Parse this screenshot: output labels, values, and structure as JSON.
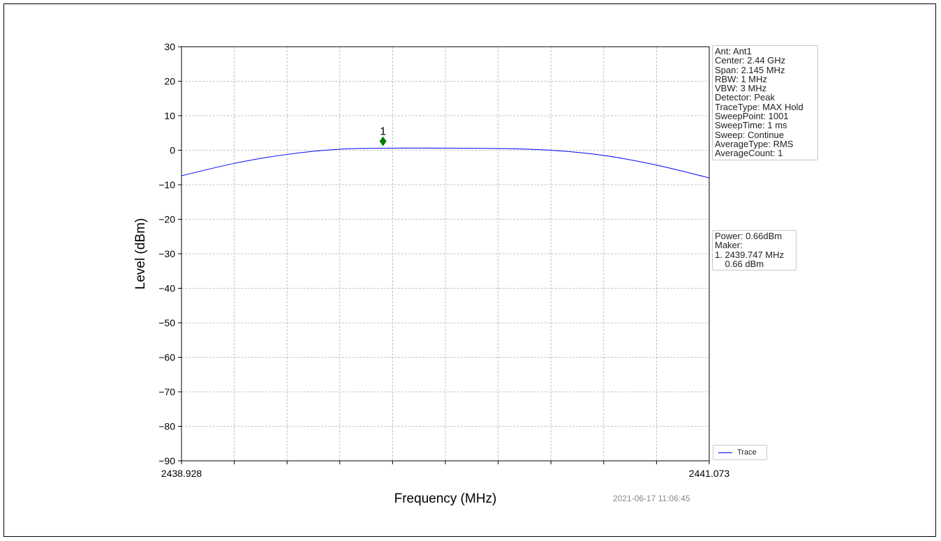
{
  "chart_data": {
    "type": "line",
    "xlabel": "Frequency (MHz)",
    "ylabel": "Level (dBm)",
    "xlim": [
      2438.928,
      2441.073
    ],
    "ylim": [
      -90,
      30
    ],
    "x_tick_labels": [
      "2438.928",
      "2441.073"
    ],
    "y_ticks": [
      30,
      20,
      10,
      0,
      -10,
      -20,
      -30,
      -40,
      -50,
      -60,
      -70,
      -80,
      -90
    ],
    "y_tick_labels": [
      "30",
      "20",
      "10",
      "0",
      "−10",
      "−20",
      "−30",
      "−40",
      "−50",
      "−60",
      "−70",
      "−80",
      "−90"
    ],
    "grid": true,
    "grid_style": "dashed",
    "x_grid_divisions": 10,
    "legend_placement": "lower-right outside",
    "series": [
      {
        "name": "Trace",
        "color": "#0000ff",
        "x": [
          2438.928,
          2439.143,
          2439.357,
          2439.572,
          2439.786,
          2440.0,
          2440.215,
          2440.429,
          2440.644,
          2440.858,
          2441.073
        ],
        "y": [
          -7.4,
          -3.8,
          -1.2,
          0.3,
          0.6,
          0.6,
          0.5,
          0.0,
          -1.5,
          -4.3,
          -8.0
        ]
      }
    ],
    "marker": {
      "label": "1",
      "x": 2439.747,
      "y": 2.6,
      "color": "#008000"
    }
  },
  "settings_box": [
    "Ant: Ant1",
    "Center: 2.44 GHz",
    "Span: 2.145 MHz",
    "RBW: 1 MHz",
    "VBW: 3 MHz",
    "Detector: Peak",
    "TraceType: MAX Hold",
    "SweepPoint: 1001",
    "SweepTime: 1 ms",
    "Sweep: Continue",
    "AverageType: RMS",
    "AverageCount: 1"
  ],
  "result_box": [
    "Power: 0.66dBm",
    "Maker:",
    "1. 2439.747 MHz",
    "    0.66 dBm"
  ],
  "legend": {
    "label": "Trace"
  },
  "timestamp": "2021-06-17 11:06:45"
}
